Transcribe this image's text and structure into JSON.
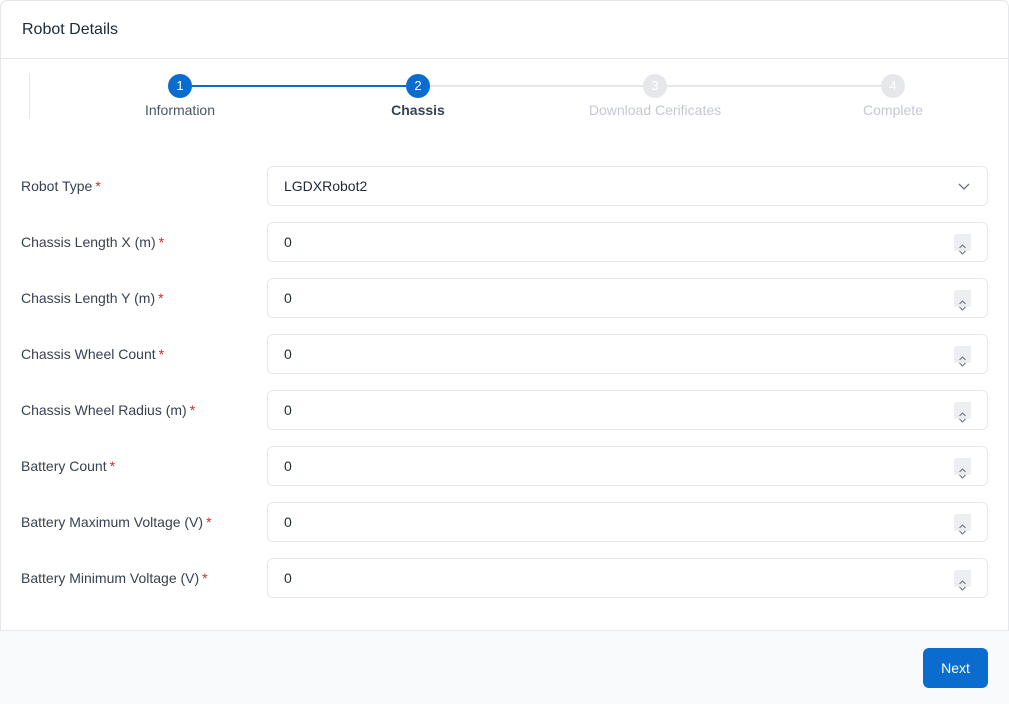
{
  "header": {
    "title": "Robot Details"
  },
  "stepper": {
    "steps": [
      {
        "number": "1",
        "label": "Information",
        "state": "completed"
      },
      {
        "number": "2",
        "label": "Chassis",
        "state": "active"
      },
      {
        "number": "3",
        "label": "Download Cerificates",
        "state": "pending"
      },
      {
        "number": "4",
        "label": "Complete",
        "state": "pending"
      }
    ]
  },
  "form": {
    "fields": [
      {
        "label": "Robot Type",
        "required": "*",
        "value": "LGDXRobot2",
        "type": "select"
      },
      {
        "label": "Chassis Length X (m)",
        "required": "*",
        "value": "0",
        "type": "number"
      },
      {
        "label": "Chassis Length Y (m)",
        "required": "*",
        "value": "0",
        "type": "number"
      },
      {
        "label": "Chassis Wheel Count",
        "required": "*",
        "value": "0",
        "type": "number"
      },
      {
        "label": "Chassis Wheel Radius (m)",
        "required": "*",
        "value": "0",
        "type": "number"
      },
      {
        "label": "Battery Count",
        "required": "*",
        "value": "0",
        "type": "number"
      },
      {
        "label": "Battery Maximum Voltage (V)",
        "required": "*",
        "value": "0",
        "type": "number"
      },
      {
        "label": "Battery Minimum Voltage (V)",
        "required": "*",
        "value": "0",
        "type": "number"
      }
    ]
  },
  "footer": {
    "next_label": "Next"
  },
  "colors": {
    "accent": "#0a6ccf",
    "pending": "#e5e7eb",
    "required": "#dc2626"
  }
}
